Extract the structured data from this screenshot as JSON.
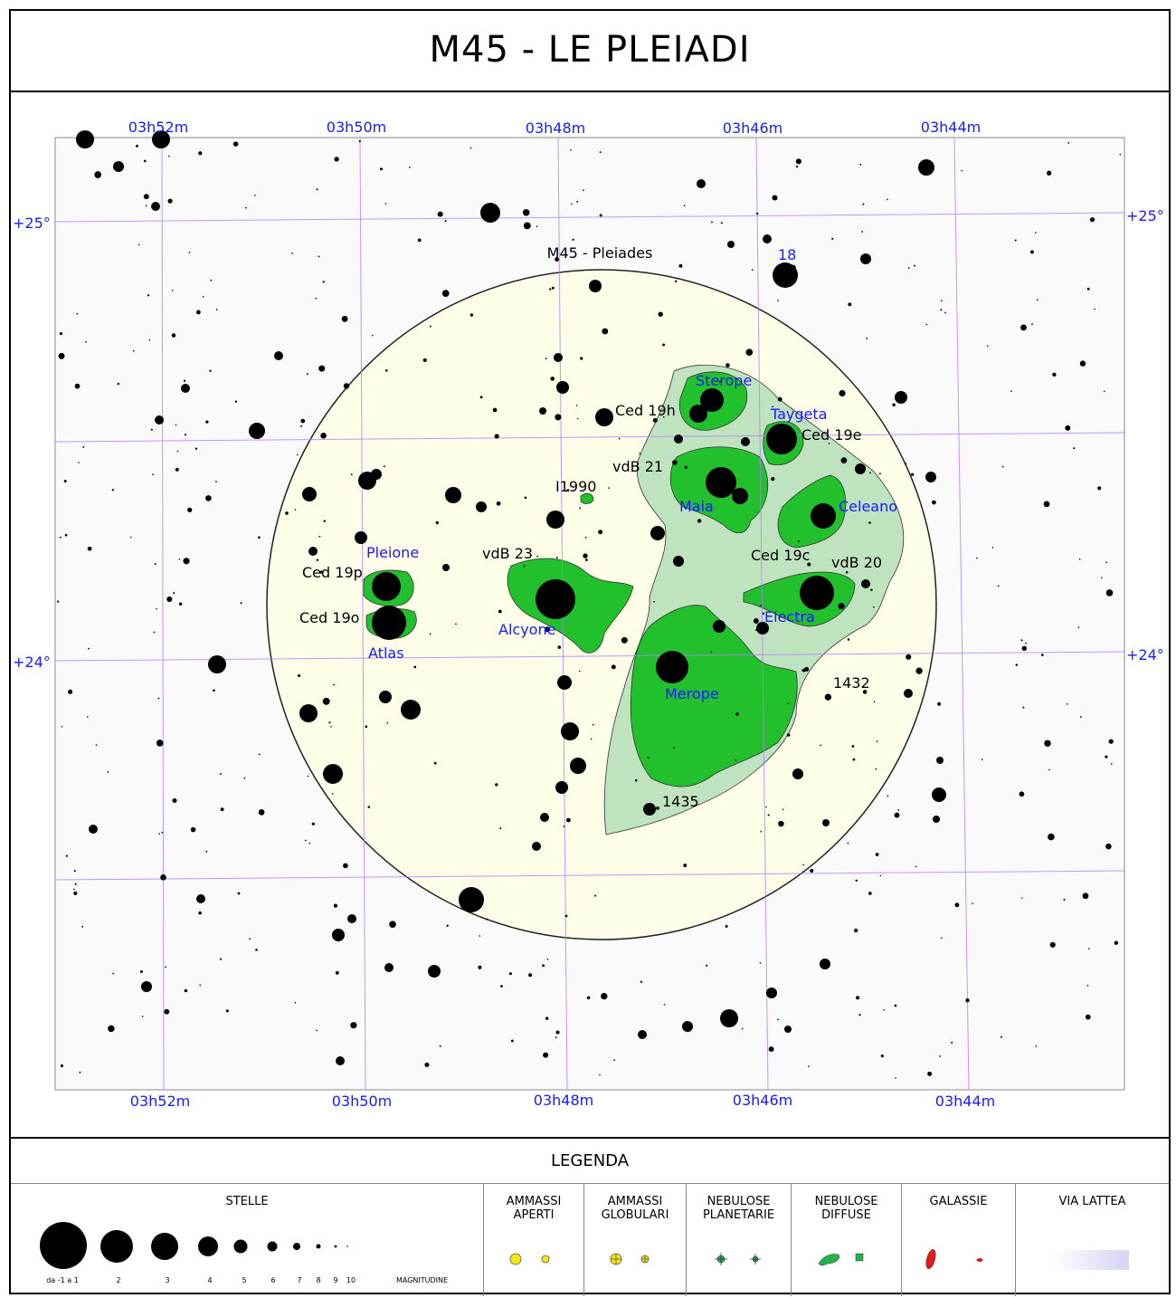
{
  "title": "M45 - LE PLEIADI",
  "ra_labels": [
    "03h52m",
    "03h50m",
    "03h48m",
    "03h46m",
    "03h44m"
  ],
  "dec_labels": [
    "+25°",
    "+24°"
  ],
  "cluster_label": "M45 - Pleiades",
  "bright_stars": [
    {
      "name": "Sterope"
    },
    {
      "name": "Taygeta"
    },
    {
      "name": "Maia"
    },
    {
      "name": "Celeano"
    },
    {
      "name": "Pleione"
    },
    {
      "name": "Alcyone"
    },
    {
      "name": "Atlas"
    },
    {
      "name": "Electra"
    },
    {
      "name": "Merope"
    },
    {
      "name": "18"
    }
  ],
  "objects": [
    {
      "name": "Ced 19h"
    },
    {
      "name": "Ced 19e"
    },
    {
      "name": "vdB 21"
    },
    {
      "name": "I1990"
    },
    {
      "name": "vdB 23"
    },
    {
      "name": "Ced 19p"
    },
    {
      "name": "Ced 19o"
    },
    {
      "name": "Ced 19c"
    },
    {
      "name": "vdB 20"
    },
    {
      "name": "1432"
    },
    {
      "name": "1435"
    }
  ],
  "legend": {
    "title": "LEGENDA",
    "stars": {
      "header": "STELLE",
      "magnitudes": [
        "da -1 a 1",
        "2",
        "3",
        "4",
        "5",
        "6",
        "7",
        "8",
        "9",
        "10"
      ],
      "axis_label": "MAGNITUDINE"
    },
    "categories": [
      {
        "header": "AMMASSI\nAPERTI",
        "icon": "open-cluster-icon",
        "color": "#f5e60f"
      },
      {
        "header": "AMMASSI\nGLOBULARI",
        "icon": "globular-cluster-icon",
        "color": "#f5e60f"
      },
      {
        "header": "NEBULOSE\nPLANETARIE",
        "icon": "planetary-nebula-icon",
        "color": "#22b14c"
      },
      {
        "header": "NEBULOSE\nDIFFUSE",
        "icon": "diffuse-nebula-icon",
        "color": "#22b14c"
      },
      {
        "header": "GALASSIE",
        "icon": "galaxy-icon",
        "color": "#e01b1b"
      },
      {
        "header": "VIA LATTEA",
        "icon": "milky-way-icon",
        "color": "#dcdcf5"
      }
    ]
  },
  "colors": {
    "grid": "#b07fff",
    "coord_text": "#1a1aff",
    "star_name": "#1a1aff",
    "cluster_fill": "#fdfde8",
    "nebula_dark": "#22c02c",
    "nebula_light": "#bfe3bf"
  }
}
